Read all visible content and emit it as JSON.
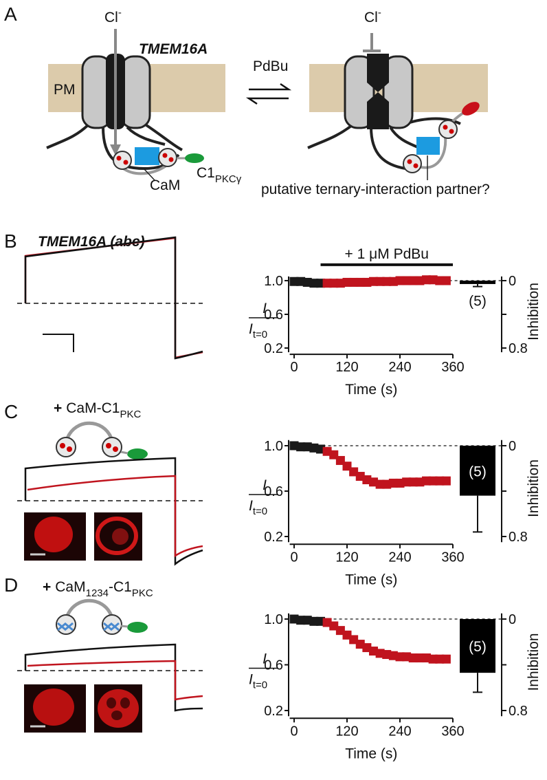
{
  "panel_labels": [
    "A",
    "B",
    "C",
    "D"
  ],
  "panel_a": {
    "ion_left": {
      "main": "Cl",
      "sup": "-"
    },
    "ion_right": {
      "main": "Cl",
      "sup": "-"
    },
    "protein": "TMEM16A",
    "drug": "PdBu",
    "membrane": "PM",
    "cam": "CaM",
    "c1": {
      "main": "C1",
      "sub": "PKCγ"
    },
    "partner": "putative ternary-interaction partner?"
  },
  "panel_b": {
    "title": "TMEM16A (abc)"
  },
  "panel_c": {
    "prefix": "+",
    "main": "CaM-C1",
    "sub": "PKC"
  },
  "panel_d": {
    "prefix": "+",
    "main": "CaM",
    "sub1": "1234",
    "mid": "-C1",
    "sub2": "PKC"
  },
  "chart_data": [
    {
      "type": "scatter",
      "x_label": "Time (s)",
      "y_label": {
        "main": "I",
        "denominator": "I",
        "sub": "t=0"
      },
      "y2_label": "Inhibition",
      "xlim": [
        -10,
        360
      ],
      "xticks": [
        0,
        120,
        240,
        360
      ],
      "ylim": [
        0.15,
        1.05
      ],
      "yticks": [
        {
          "value": 0.2,
          "label": "0.2"
        },
        {
          "value": 0.6,
          "label": "0.6"
        },
        {
          "value": 1.0,
          "label": "1.0"
        }
      ],
      "y2lim": [
        0.85,
        -0.05
      ],
      "y2ticks": [
        0,
        {
          "value": 0.4,
          "label": null
        },
        0.8
      ],
      "reference_line": 1.0,
      "annotation": {
        "text": "+ 1 μM PdBu",
        "x_range": [
          60,
          360
        ]
      },
      "series": [
        {
          "color": "#1a1a1a",
          "x": [
            0,
            15,
            30,
            45,
            60
          ],
          "values": [
            0.99,
            0.99,
            0.98,
            0.97,
            0.97
          ]
        },
        {
          "color": "#c0141e",
          "x": [
            75,
            90,
            105,
            120,
            135,
            150,
            165,
            180,
            195,
            210,
            225,
            240,
            255,
            270,
            285,
            300,
            315,
            330,
            345
          ],
          "values": [
            0.97,
            0.97,
            0.97,
            0.98,
            0.98,
            0.98,
            0.98,
            0.99,
            0.99,
            0.99,
            0.99,
            1.0,
            1.0,
            1.0,
            1.0,
            1.01,
            1.01,
            1.0,
            1.0
          ]
        }
      ],
      "bar": {
        "value": 0.04,
        "error": 0.03,
        "n_label": "(5)",
        "color": "#000",
        "axis": "y2"
      }
    },
    {
      "type": "scatter",
      "x_label": "Time (s)",
      "y_label": {
        "main": "I",
        "denominator": "I",
        "sub": "t=0"
      },
      "y2_label": "Inhibition",
      "xlim": [
        -10,
        360
      ],
      "xticks": [
        0,
        120,
        240,
        360
      ],
      "ylim": [
        0.15,
        1.05
      ],
      "yticks": [
        {
          "value": 0.2,
          "label": "0.2"
        },
        {
          "value": 0.6,
          "label": "0.6"
        },
        {
          "value": 1.0,
          "label": "1.0"
        }
      ],
      "y2lim": [
        0.85,
        -0.05
      ],
      "y2ticks": [
        0,
        {
          "value": 0.4,
          "label": null
        },
        0.8
      ],
      "reference_line": 1.0,
      "series": [
        {
          "color": "#1a1a1a",
          "x": [
            0,
            15,
            30,
            45,
            60
          ],
          "values": [
            1.0,
            0.99,
            0.99,
            0.98,
            0.97
          ]
        },
        {
          "color": "#c0141e",
          "x": [
            75,
            90,
            105,
            120,
            135,
            150,
            165,
            180,
            195,
            210,
            225,
            240,
            255,
            270,
            285,
            300,
            315,
            330,
            345
          ],
          "values": [
            0.95,
            0.92,
            0.87,
            0.82,
            0.77,
            0.73,
            0.7,
            0.68,
            0.66,
            0.66,
            0.67,
            0.67,
            0.68,
            0.68,
            0.68,
            0.69,
            0.69,
            0.69,
            0.69
          ]
        }
      ],
      "bar": {
        "value": 0.44,
        "error": 0.32,
        "n_label": "(5)",
        "color": "#000",
        "axis": "y2"
      }
    },
    {
      "type": "scatter",
      "x_label": "Time (s)",
      "y_label": {
        "main": "I",
        "denominator": "I",
        "sub": "t=0"
      },
      "y2_label": "Inhibition",
      "xlim": [
        -10,
        360
      ],
      "xticks": [
        0,
        120,
        240,
        360
      ],
      "ylim": [
        0.15,
        1.05
      ],
      "yticks": [
        {
          "value": 0.2,
          "label": "0.2"
        },
        {
          "value": 0.6,
          "label": "0.6"
        },
        {
          "value": 1.0,
          "label": "1.0"
        }
      ],
      "y2lim": [
        0.85,
        -0.05
      ],
      "y2ticks": [
        0,
        {
          "value": 0.4,
          "label": null
        },
        0.8
      ],
      "reference_line": 1.0,
      "series": [
        {
          "color": "#1a1a1a",
          "x": [
            0,
            15,
            30,
            45,
            60
          ],
          "values": [
            1.0,
            0.99,
            0.99,
            0.98,
            0.98
          ]
        },
        {
          "color": "#c0141e",
          "x": [
            75,
            90,
            105,
            120,
            135,
            150,
            165,
            180,
            195,
            210,
            225,
            240,
            255,
            270,
            285,
            300,
            315,
            330,
            345
          ],
          "values": [
            0.97,
            0.94,
            0.9,
            0.86,
            0.82,
            0.78,
            0.75,
            0.72,
            0.7,
            0.69,
            0.68,
            0.67,
            0.67,
            0.66,
            0.66,
            0.66,
            0.65,
            0.65,
            0.65
          ]
        }
      ],
      "bar": {
        "value": 0.47,
        "error": 0.17,
        "n_label": "(5)",
        "color": "#000",
        "axis": "y2"
      }
    }
  ]
}
